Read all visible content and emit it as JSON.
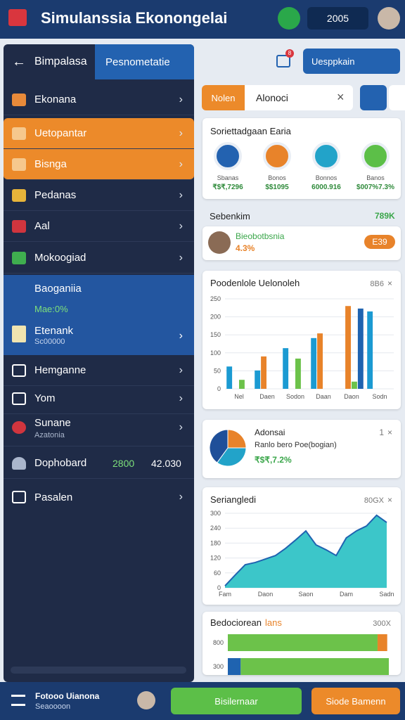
{
  "header": {
    "title": "Simulanssia Ekonongelai",
    "badge": "2005"
  },
  "sidebar": {
    "back": "Bimpalasa",
    "tab": "Pesnometatie",
    "items": [
      "Ekonana",
      "Uetopantar",
      "Bisnga",
      "Pedanas",
      "Aal",
      "Mokoogiad"
    ],
    "group": {
      "title": "Baoganiia",
      "stat": "Mae:0%",
      "item": "Etenank",
      "item_sub": "Sc00000"
    },
    "items2": [
      "Hemganne",
      "Yom"
    ],
    "sunane": {
      "label": "Sunane",
      "sub": "Azatonia"
    },
    "dashboard": {
      "label": "Dophobard",
      "value1": "2800",
      "value2": "42.030"
    },
    "last": "Pasalen"
  },
  "toolbar": {
    "badge": "8",
    "button": "Uesppkain"
  },
  "search": {
    "tab": "Nolen",
    "query": "Alonoci"
  },
  "summary": {
    "title": "Soriettadgaan Earia",
    "stats": [
      {
        "label": "Sbanas",
        "value": "₹$₹,7296"
      },
      {
        "label": "Bonos",
        "value": "$$1095"
      },
      {
        "label": "Bonnos",
        "value": "6000.916"
      },
      {
        "label": "Banos",
        "value": "$007%7.3%"
      }
    ]
  },
  "section": {
    "title": "Sebenkim",
    "value": "789K"
  },
  "person": {
    "name": "Bieobotbsnia",
    "change": "4.3%",
    "button": "E39"
  },
  "footer": {
    "title": "Fotooo Uianona",
    "sub": "Seaoooon",
    "button1": "Bisilernaar",
    "button2": "Siode Bamenn"
  },
  "chart_data": [
    {
      "type": "bar",
      "title": "Poodenlole Uelonoleh",
      "note": "8B6",
      "categories": [
        "Nel",
        "Daen",
        "Sodon",
        "Daan",
        "Daon",
        "Sodn"
      ],
      "series": [
        {
          "color": "#1b9ad2",
          "values": [
            62,
            51,
            113,
            141,
            null,
            215
          ]
        },
        {
          "color": "#e8832a",
          "values": [
            null,
            90,
            null,
            154,
            230,
            null
          ]
        },
        {
          "color": "#6cc24a",
          "values": [
            25,
            null,
            84,
            null,
            20,
            null
          ]
        },
        {
          "color": "#1f63b0",
          "values": [
            null,
            null,
            null,
            null,
            223,
            null
          ]
        }
      ],
      "ylim": [
        0,
        250
      ],
      "yticks": [
        0,
        50,
        100,
        150,
        200,
        250
      ],
      "grid": true
    },
    {
      "type": "pie",
      "title": "Adonsai",
      "subtitle": "Ranlo bero Poe(bogian)",
      "value_text": "₹$₹,7.2%",
      "note": "1",
      "values": [
        25,
        35,
        40
      ],
      "colors": [
        "#e8832a",
        "#22a3c9",
        "#1f4f99"
      ]
    },
    {
      "type": "area",
      "title": "Seriangledi",
      "note": "80GX",
      "categories": [
        "Fam",
        null,
        null,
        null,
        "Daon",
        null,
        null,
        null,
        "Saon",
        null,
        null,
        null,
        "Dam",
        null,
        null,
        null,
        "Sadn"
      ],
      "values": [
        8,
        51,
        93,
        102,
        116,
        130,
        159,
        193,
        229,
        173,
        153,
        130,
        201,
        229,
        249,
        292,
        263
      ],
      "color": "#3cc6c9",
      "line_color": "#1f63b0",
      "ylim": [
        0,
        300
      ],
      "yticks": [
        0,
        60,
        120,
        180,
        240,
        300
      ],
      "grid": true
    },
    {
      "type": "hbar",
      "title": "Bedociorean",
      "title_accent": "lans",
      "note": "300X",
      "categories": [
        "800",
        "300"
      ],
      "series": [
        {
          "color": "#1f63b0",
          "values": [
            0,
            8
          ]
        },
        {
          "color": "#6cc24a",
          "values": [
            93,
            92
          ]
        },
        {
          "color": "#e8832a",
          "values": [
            6,
            0
          ]
        }
      ],
      "xlim": [
        0,
        100
      ]
    }
  ]
}
